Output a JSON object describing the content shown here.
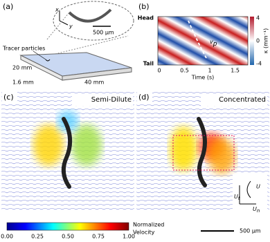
{
  "panel_a": {
    "label": "(a)",
    "axis_x": "x",
    "axis_y": "y",
    "scale": "500 μm",
    "tracer": "Tracer particles",
    "width": "20 mm",
    "thickness": "1.6 mm",
    "length": "40 mm"
  },
  "panel_b": {
    "label": "(b)",
    "head": "Head",
    "tail": "Tail",
    "colorbar_title": "κ (mm⁻¹)",
    "colorbar_ticks": [
      "4",
      "0",
      "-4"
    ],
    "x_ticks": [
      "0",
      "0.5",
      "1",
      "1.5"
    ],
    "x_title": "Time (s)",
    "speed": {
      "main": "v",
      "sub": "p"
    }
  },
  "panel_c": {
    "label": "(c)",
    "title": "Semi-Dilute"
  },
  "panel_d": {
    "label": "(d)",
    "title": "Concentrated",
    "tangential": {
      "main": "U",
      "sub": "t"
    },
    "normal": {
      "main": "U",
      "sub": "n"
    },
    "total": "U"
  },
  "colorbar": {
    "ticks": [
      "0.00",
      "0.25",
      "0.50",
      "0.75",
      "1.00"
    ],
    "title_line1": "Normalized",
    "title_line2": "Velocity"
  },
  "scale_bar": "500 μm"
}
